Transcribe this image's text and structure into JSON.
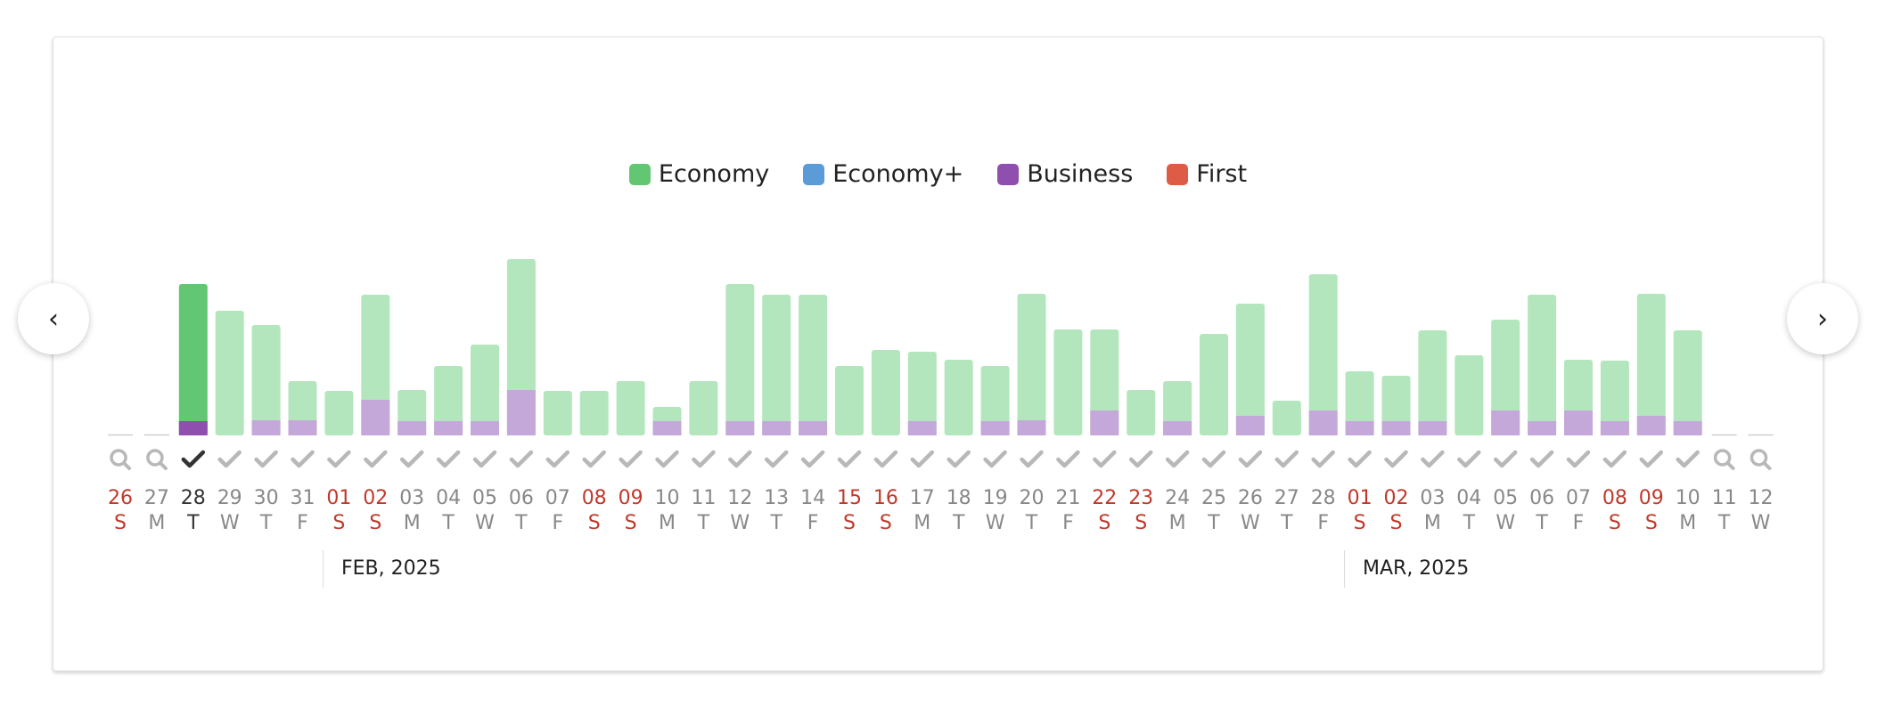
{
  "legend": [
    {
      "label": "Economy",
      "color": "#62c672"
    },
    {
      "label": "Economy+",
      "color": "#5b9bd8"
    },
    {
      "label": "Business",
      "color": "#8e4fae"
    },
    {
      "label": "First",
      "color": "#de5b46"
    }
  ],
  "nav": {
    "prev_icon": "chevron-left-icon",
    "next_icon": "chevron-right-icon",
    "prev_glyph": "‹",
    "next_glyph": "›"
  },
  "months": [
    {
      "label": "FEB, 2025"
    },
    {
      "label": "MAR, 2025"
    }
  ],
  "colors": {
    "economy_light": "#b3e6bd",
    "economy_selected": "#62c672",
    "business_light": "#c5a8da",
    "business_selected": "#8e4fae",
    "weekend_text": "#c0392b",
    "weekday_text": "#888888",
    "selected_text": "#333333"
  },
  "chart_data": {
    "type": "bar",
    "stacked": true,
    "selected_day": "28",
    "days": [
      {
        "day": "26",
        "dow": "S",
        "weekend": true,
        "status": "search",
        "economy": 0,
        "business": 0
      },
      {
        "day": "27",
        "dow": "M",
        "weekend": false,
        "status": "search",
        "economy": 0,
        "business": 0
      },
      {
        "day": "28",
        "dow": "T",
        "weekend": false,
        "status": "selected",
        "economy": 154,
        "business": 16
      },
      {
        "day": "29",
        "dow": "W",
        "weekend": false,
        "status": "check",
        "economy": 140,
        "business": 0
      },
      {
        "day": "30",
        "dow": "T",
        "weekend": false,
        "status": "check",
        "economy": 107,
        "business": 17
      },
      {
        "day": "31",
        "dow": "F",
        "weekend": false,
        "status": "check",
        "economy": 44,
        "business": 17
      },
      {
        "day": "01",
        "dow": "S",
        "weekend": true,
        "status": "check",
        "economy": 50,
        "business": 0
      },
      {
        "day": "02",
        "dow": "S",
        "weekend": true,
        "status": "check",
        "economy": 118,
        "business": 40
      },
      {
        "day": "03",
        "dow": "M",
        "weekend": false,
        "status": "check",
        "economy": 35,
        "business": 16
      },
      {
        "day": "04",
        "dow": "T",
        "weekend": false,
        "status": "check",
        "economy": 62,
        "business": 16
      },
      {
        "day": "05",
        "dow": "W",
        "weekend": false,
        "status": "check",
        "economy": 86,
        "business": 16
      },
      {
        "day": "06",
        "dow": "T",
        "weekend": false,
        "status": "check",
        "economy": 147,
        "business": 51
      },
      {
        "day": "07",
        "dow": "F",
        "weekend": false,
        "status": "check",
        "economy": 50,
        "business": 0
      },
      {
        "day": "08",
        "dow": "S",
        "weekend": true,
        "status": "check",
        "economy": 50,
        "business": 0
      },
      {
        "day": "09",
        "dow": "S",
        "weekend": true,
        "status": "check",
        "economy": 61,
        "business": 0
      },
      {
        "day": "10",
        "dow": "M",
        "weekend": false,
        "status": "check",
        "economy": 16,
        "business": 16
      },
      {
        "day": "11",
        "dow": "T",
        "weekend": false,
        "status": "check",
        "economy": 61,
        "business": 0
      },
      {
        "day": "12",
        "dow": "W",
        "weekend": false,
        "status": "check",
        "economy": 154,
        "business": 16
      },
      {
        "day": "13",
        "dow": "T",
        "weekend": false,
        "status": "check",
        "economy": 142,
        "business": 16
      },
      {
        "day": "14",
        "dow": "F",
        "weekend": false,
        "status": "check",
        "economy": 142,
        "business": 16
      },
      {
        "day": "15",
        "dow": "S",
        "weekend": true,
        "status": "check",
        "economy": 78,
        "business": 0
      },
      {
        "day": "16",
        "dow": "S",
        "weekend": true,
        "status": "check",
        "economy": 96,
        "business": 0
      },
      {
        "day": "17",
        "dow": "M",
        "weekend": false,
        "status": "check",
        "economy": 78,
        "business": 16
      },
      {
        "day": "18",
        "dow": "T",
        "weekend": false,
        "status": "check",
        "economy": 85,
        "business": 0
      },
      {
        "day": "19",
        "dow": "W",
        "weekend": false,
        "status": "check",
        "economy": 62,
        "business": 16
      },
      {
        "day": "20",
        "dow": "T",
        "weekend": false,
        "status": "check",
        "economy": 142,
        "business": 17
      },
      {
        "day": "21",
        "dow": "F",
        "weekend": false,
        "status": "check",
        "economy": 119,
        "business": 0
      },
      {
        "day": "22",
        "dow": "S",
        "weekend": true,
        "status": "check",
        "economy": 91,
        "business": 28
      },
      {
        "day": "23",
        "dow": "S",
        "weekend": true,
        "status": "check",
        "economy": 51,
        "business": 0
      },
      {
        "day": "24",
        "dow": "M",
        "weekend": false,
        "status": "check",
        "economy": 45,
        "business": 16
      },
      {
        "day": "25",
        "dow": "T",
        "weekend": false,
        "status": "check",
        "economy": 114,
        "business": 0
      },
      {
        "day": "26",
        "dow": "W",
        "weekend": false,
        "status": "check",
        "economy": 126,
        "business": 22
      },
      {
        "day": "27",
        "dow": "T",
        "weekend": false,
        "status": "check",
        "economy": 39,
        "business": 0
      },
      {
        "day": "28",
        "dow": "F",
        "weekend": false,
        "status": "check",
        "economy": 153,
        "business": 28
      },
      {
        "day": "01",
        "dow": "S",
        "weekend": true,
        "status": "check",
        "economy": 56,
        "business": 16
      },
      {
        "day": "02",
        "dow": "S",
        "weekend": true,
        "status": "check",
        "economy": 51,
        "business": 16
      },
      {
        "day": "03",
        "dow": "M",
        "weekend": false,
        "status": "check",
        "economy": 102,
        "business": 16
      },
      {
        "day": "04",
        "dow": "T",
        "weekend": false,
        "status": "check",
        "economy": 90,
        "business": 0
      },
      {
        "day": "05",
        "dow": "W",
        "weekend": false,
        "status": "check",
        "economy": 102,
        "business": 28
      },
      {
        "day": "06",
        "dow": "T",
        "weekend": false,
        "status": "check",
        "economy": 142,
        "business": 16
      },
      {
        "day": "07",
        "dow": "F",
        "weekend": false,
        "status": "check",
        "economy": 57,
        "business": 28
      },
      {
        "day": "08",
        "dow": "S",
        "weekend": true,
        "status": "check",
        "economy": 68,
        "business": 16
      },
      {
        "day": "09",
        "dow": "S",
        "weekend": true,
        "status": "check",
        "economy": 137,
        "business": 22
      },
      {
        "day": "10",
        "dow": "M",
        "weekend": false,
        "status": "check",
        "economy": 102,
        "business": 16
      },
      {
        "day": "11",
        "dow": "T",
        "weekend": false,
        "status": "search",
        "economy": 0,
        "business": 0
      },
      {
        "day": "12",
        "dow": "W",
        "weekend": false,
        "status": "search",
        "economy": 0,
        "business": 0
      }
    ]
  }
}
